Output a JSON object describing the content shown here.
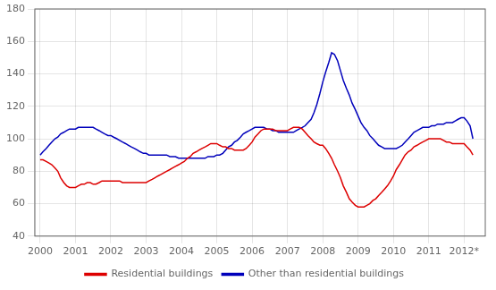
{
  "chart_data": {
    "type": "line",
    "x": [
      2000.0,
      2000.08,
      2000.17,
      2000.25,
      2000.33,
      2000.42,
      2000.5,
      2000.58,
      2000.67,
      2000.75,
      2000.83,
      2000.92,
      2001.0,
      2001.08,
      2001.17,
      2001.25,
      2001.33,
      2001.42,
      2001.5,
      2001.58,
      2001.67,
      2001.75,
      2001.83,
      2001.92,
      2002.0,
      2002.08,
      2002.17,
      2002.25,
      2002.33,
      2002.42,
      2002.5,
      2002.58,
      2002.67,
      2002.75,
      2002.83,
      2002.92,
      2003.0,
      2003.08,
      2003.17,
      2003.25,
      2003.33,
      2003.42,
      2003.5,
      2003.58,
      2003.67,
      2003.75,
      2003.83,
      2003.92,
      2004.0,
      2004.08,
      2004.17,
      2004.25,
      2004.33,
      2004.42,
      2004.5,
      2004.58,
      2004.67,
      2004.75,
      2004.83,
      2004.92,
      2005.0,
      2005.08,
      2005.17,
      2005.25,
      2005.33,
      2005.42,
      2005.5,
      2005.58,
      2005.67,
      2005.75,
      2005.83,
      2005.92,
      2006.0,
      2006.08,
      2006.17,
      2006.25,
      2006.33,
      2006.42,
      2006.5,
      2006.58,
      2006.67,
      2006.75,
      2006.83,
      2006.92,
      2007.0,
      2007.08,
      2007.17,
      2007.25,
      2007.33,
      2007.42,
      2007.5,
      2007.58,
      2007.67,
      2007.75,
      2007.83,
      2007.92,
      2008.0,
      2008.08,
      2008.17,
      2008.25,
      2008.33,
      2008.42,
      2008.5,
      2008.58,
      2008.67,
      2008.75,
      2008.83,
      2008.92,
      2009.0,
      2009.08,
      2009.17,
      2009.25,
      2009.33,
      2009.42,
      2009.5,
      2009.58,
      2009.67,
      2009.75,
      2009.83,
      2009.92,
      2010.0,
      2010.08,
      2010.17,
      2010.25,
      2010.33,
      2010.42,
      2010.5,
      2010.58,
      2010.67,
      2010.75,
      2010.83,
      2010.92,
      2011.0,
      2011.08,
      2011.17,
      2011.25,
      2011.33,
      2011.42,
      2011.5,
      2011.58,
      2011.67,
      2011.75,
      2011.83,
      2011.92,
      2012.0,
      2012.08,
      2012.17,
      2012.25
    ],
    "series": [
      {
        "name": "Residential buildings",
        "color": "#dd0000",
        "values": [
          87,
          87,
          86,
          85,
          84,
          82,
          80,
          76,
          73,
          71,
          70,
          70,
          70,
          71,
          72,
          72,
          73,
          73,
          72,
          72,
          73,
          74,
          74,
          74,
          74,
          74,
          74,
          74,
          73,
          73,
          73,
          73,
          73,
          73,
          73,
          73,
          73,
          74,
          75,
          76,
          77,
          78,
          79,
          80,
          81,
          82,
          83,
          84,
          85,
          86,
          88,
          89,
          91,
          92,
          93,
          94,
          95,
          96,
          97,
          97,
          97,
          96,
          95,
          95,
          94,
          94,
          93,
          93,
          93,
          93,
          94,
          96,
          98,
          101,
          103,
          105,
          106,
          106,
          106,
          106,
          105,
          105,
          105,
          105,
          105,
          106,
          107,
          107,
          107,
          106,
          104,
          102,
          100,
          98,
          97,
          96,
          96,
          94,
          91,
          88,
          84,
          80,
          76,
          71,
          67,
          63,
          61,
          59,
          58,
          58,
          58,
          59,
          60,
          62,
          63,
          65,
          67,
          69,
          71,
          74,
          77,
          81,
          84,
          87,
          90,
          92,
          93,
          95,
          96,
          97,
          98,
          99,
          100,
          100,
          100,
          100,
          100,
          99,
          98,
          98,
          97,
          97,
          97,
          97,
          97,
          95,
          93,
          90
        ]
      },
      {
        "name": "Other than residential buildings",
        "color": "#0000bb",
        "values": [
          90,
          92,
          94,
          96,
          98,
          100,
          101,
          103,
          104,
          105,
          106,
          106,
          106,
          107,
          107,
          107,
          107,
          107,
          107,
          106,
          105,
          104,
          103,
          102,
          102,
          101,
          100,
          99,
          98,
          97,
          96,
          95,
          94,
          93,
          92,
          91,
          91,
          90,
          90,
          90,
          90,
          90,
          90,
          90,
          89,
          89,
          89,
          88,
          88,
          88,
          88,
          88,
          88,
          88,
          88,
          88,
          88,
          89,
          89,
          89,
          90,
          90,
          91,
          93,
          95,
          96,
          98,
          99,
          101,
          103,
          104,
          105,
          106,
          107,
          107,
          107,
          107,
          106,
          106,
          105,
          105,
          104,
          104,
          104,
          104,
          104,
          104,
          105,
          106,
          107,
          108,
          110,
          112,
          116,
          121,
          128,
          135,
          141,
          147,
          153,
          152,
          148,
          142,
          136,
          131,
          127,
          122,
          118,
          114,
          110,
          107,
          105,
          102,
          100,
          98,
          96,
          95,
          94,
          94,
          94,
          94,
          94,
          95,
          96,
          98,
          100,
          102,
          104,
          105,
          106,
          107,
          107,
          107,
          108,
          108,
          109,
          109,
          109,
          110,
          110,
          110,
          111,
          112,
          113,
          113,
          111,
          108,
          100
        ]
      }
    ],
    "xlim": [
      1999.85,
      2012.6
    ],
    "xticks": [
      2000,
      2001,
      2002,
      2003,
      2004,
      2005,
      2006,
      2007,
      2008,
      2009,
      2010,
      2011,
      {
        "value": 2012,
        "label": "2012*"
      }
    ],
    "ylim": [
      40,
      180
    ],
    "yticks": [
      40,
      60,
      80,
      100,
      120,
      140,
      160,
      180
    ],
    "grid": true,
    "legend": "bottom"
  }
}
